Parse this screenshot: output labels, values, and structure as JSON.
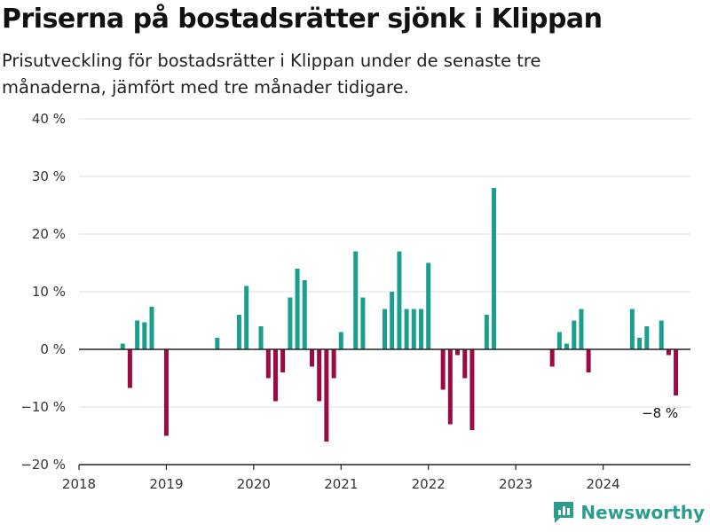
{
  "header": {
    "title": "Priserna på bostadsrätter sjönk i Klippan",
    "subtitle": "Prisutveckling för bostadsrätter i Klippan under de senaste tre månaderna, jämfört med tre månader tidigare."
  },
  "brand": {
    "name": "Newsworthy",
    "icon": "newsworthy-logo-icon",
    "color": "#2a9d8f"
  },
  "colors": {
    "positive": "#1a9e8e",
    "negative": "#9b0a42"
  },
  "chart_data": {
    "type": "bar",
    "x_range": [
      2018.0,
      2025.0
    ],
    "ylim": [
      -20,
      40
    ],
    "y_ticks": [
      -20,
      -10,
      0,
      10,
      20,
      30,
      40
    ],
    "y_tick_labels": [
      "−20 %",
      "−10 %",
      "0 %",
      "10 %",
      "20 %",
      "30 %",
      "40 %"
    ],
    "x_ticks": [
      2018,
      2019,
      2020,
      2021,
      2022,
      2023,
      2024
    ],
    "x_tick_labels": [
      "2018",
      "2019",
      "2020",
      "2021",
      "2022",
      "2023",
      "2024"
    ],
    "grid": true,
    "annotation": {
      "text": "−8 %",
      "x": 2024.833,
      "y": -8
    },
    "x": [
      2018.5,
      2018.583,
      2018.667,
      2018.75,
      2018.833,
      2019.0,
      2019.583,
      2019.833,
      2019.917,
      2020.083,
      2020.167,
      2020.25,
      2020.333,
      2020.417,
      2020.5,
      2020.583,
      2020.667,
      2020.75,
      2020.833,
      2020.917,
      2021.0,
      2021.167,
      2021.25,
      2021.5,
      2021.583,
      2021.667,
      2021.75,
      2021.833,
      2021.917,
      2022.0,
      2022.167,
      2022.25,
      2022.333,
      2022.417,
      2022.5,
      2022.667,
      2022.75,
      2023.417,
      2023.5,
      2023.583,
      2023.667,
      2023.75,
      2023.833,
      2024.333,
      2024.417,
      2024.5,
      2024.667,
      2024.75,
      2024.833
    ],
    "values": [
      1,
      -6.7,
      5,
      4.7,
      7.4,
      -15,
      2,
      6,
      11,
      4,
      -5,
      -9,
      -4,
      9,
      14,
      12,
      -3,
      -9,
      -16,
      -5,
      3,
      17,
      9,
      7,
      10,
      17,
      7,
      7,
      7,
      15,
      -7,
      -13,
      -1,
      -5,
      -14,
      6,
      28,
      -3,
      3,
      1,
      5,
      7,
      -4,
      7,
      2,
      4,
      5,
      -1,
      -8
    ]
  }
}
